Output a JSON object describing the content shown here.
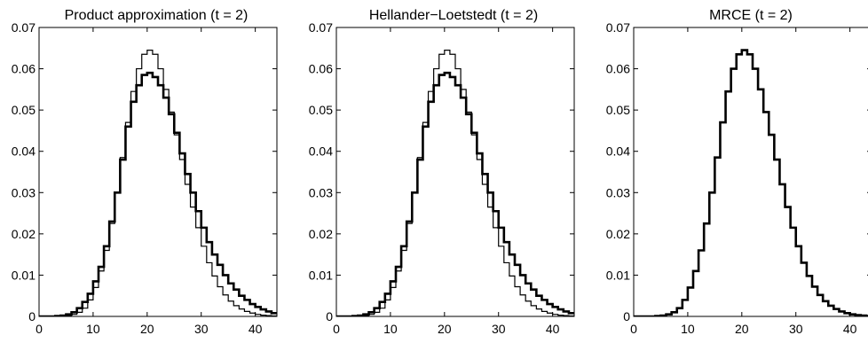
{
  "chart_data": [
    {
      "type": "line",
      "step": true,
      "title": "Product approximation (t = 2)",
      "xlim": [
        0,
        44
      ],
      "ylim": [
        0,
        0.07
      ],
      "xticks": [
        0,
        10,
        20,
        30,
        40
      ],
      "yticks": [
        0,
        0.01,
        0.02,
        0.03,
        0.04,
        0.05,
        0.06,
        0.07
      ],
      "x_start": 0,
      "series": [
        {
          "style": "bold",
          "values": [
            0,
            0,
            0,
            0.0001,
            0.0002,
            0.0005,
            0.001,
            0.002,
            0.0035,
            0.0055,
            0.0085,
            0.012,
            0.017,
            0.023,
            0.03,
            0.038,
            0.046,
            0.052,
            0.056,
            0.0585,
            0.059,
            0.058,
            0.056,
            0.053,
            0.049,
            0.0445,
            0.0395,
            0.0345,
            0.03,
            0.0255,
            0.0215,
            0.018,
            0.015,
            0.0125,
            0.01,
            0.008,
            0.0065,
            0.005,
            0.004,
            0.003,
            0.0023,
            0.0017,
            0.0012,
            0.0008
          ]
        },
        {
          "style": "thin",
          "values": [
            0,
            0,
            0,
            0,
            0.0001,
            0.0002,
            0.0005,
            0.001,
            0.002,
            0.004,
            0.007,
            0.011,
            0.016,
            0.0225,
            0.03,
            0.0385,
            0.047,
            0.0545,
            0.06,
            0.0635,
            0.0645,
            0.0635,
            0.06,
            0.055,
            0.0495,
            0.044,
            0.038,
            0.032,
            0.0265,
            0.0215,
            0.017,
            0.013,
            0.0098,
            0.0072,
            0.0052,
            0.0037,
            0.0026,
            0.0018,
            0.0012,
            0.0008,
            0.0005,
            0.0003,
            0.0002,
            0.0001
          ]
        }
      ]
    },
    {
      "type": "line",
      "step": true,
      "title": "Hellander−Loetstedt (t = 2)",
      "xlim": [
        0,
        44
      ],
      "ylim": [
        0,
        0.07
      ],
      "xticks": [
        0,
        10,
        20,
        30,
        40
      ],
      "yticks": [
        0,
        0.01,
        0.02,
        0.03,
        0.04,
        0.05,
        0.06,
        0.07
      ],
      "x_start": 0,
      "series": [
        {
          "style": "bold",
          "values": [
            0,
            0,
            0,
            0.0001,
            0.0002,
            0.0005,
            0.001,
            0.002,
            0.0035,
            0.0055,
            0.0085,
            0.012,
            0.017,
            0.023,
            0.03,
            0.038,
            0.046,
            0.052,
            0.056,
            0.0585,
            0.059,
            0.058,
            0.056,
            0.053,
            0.049,
            0.0445,
            0.0395,
            0.0345,
            0.03,
            0.0255,
            0.0215,
            0.018,
            0.015,
            0.0125,
            0.01,
            0.008,
            0.0065,
            0.005,
            0.004,
            0.003,
            0.0023,
            0.0017,
            0.0012,
            0.0008
          ]
        },
        {
          "style": "thin",
          "values": [
            0,
            0,
            0,
            0,
            0.0001,
            0.0002,
            0.0005,
            0.001,
            0.002,
            0.004,
            0.007,
            0.011,
            0.016,
            0.0225,
            0.03,
            0.0385,
            0.047,
            0.0545,
            0.06,
            0.0635,
            0.0645,
            0.0635,
            0.06,
            0.055,
            0.0495,
            0.044,
            0.038,
            0.032,
            0.0265,
            0.0215,
            0.017,
            0.013,
            0.0098,
            0.0072,
            0.0052,
            0.0037,
            0.0026,
            0.0018,
            0.0012,
            0.0008,
            0.0005,
            0.0003,
            0.0002,
            0.0001
          ]
        }
      ]
    },
    {
      "type": "line",
      "step": true,
      "title": "MRCE (t = 2)",
      "xlim": [
        0,
        44
      ],
      "ylim": [
        0,
        0.07
      ],
      "xticks": [
        0,
        10,
        20,
        30,
        40
      ],
      "yticks": [
        0,
        0.01,
        0.02,
        0.03,
        0.04,
        0.05,
        0.06,
        0.07
      ],
      "x_start": 0,
      "series": [
        {
          "style": "bold",
          "values": [
            0,
            0,
            0,
            0,
            0.0001,
            0.0002,
            0.0005,
            0.001,
            0.002,
            0.004,
            0.007,
            0.011,
            0.016,
            0.0225,
            0.03,
            0.0385,
            0.047,
            0.0545,
            0.06,
            0.0635,
            0.0645,
            0.0635,
            0.06,
            0.055,
            0.0495,
            0.044,
            0.038,
            0.032,
            0.0265,
            0.0215,
            0.017,
            0.013,
            0.0098,
            0.0072,
            0.0052,
            0.0037,
            0.0026,
            0.0018,
            0.0012,
            0.0008,
            0.0005,
            0.0003,
            0.0002,
            0.0001
          ]
        }
      ]
    }
  ]
}
